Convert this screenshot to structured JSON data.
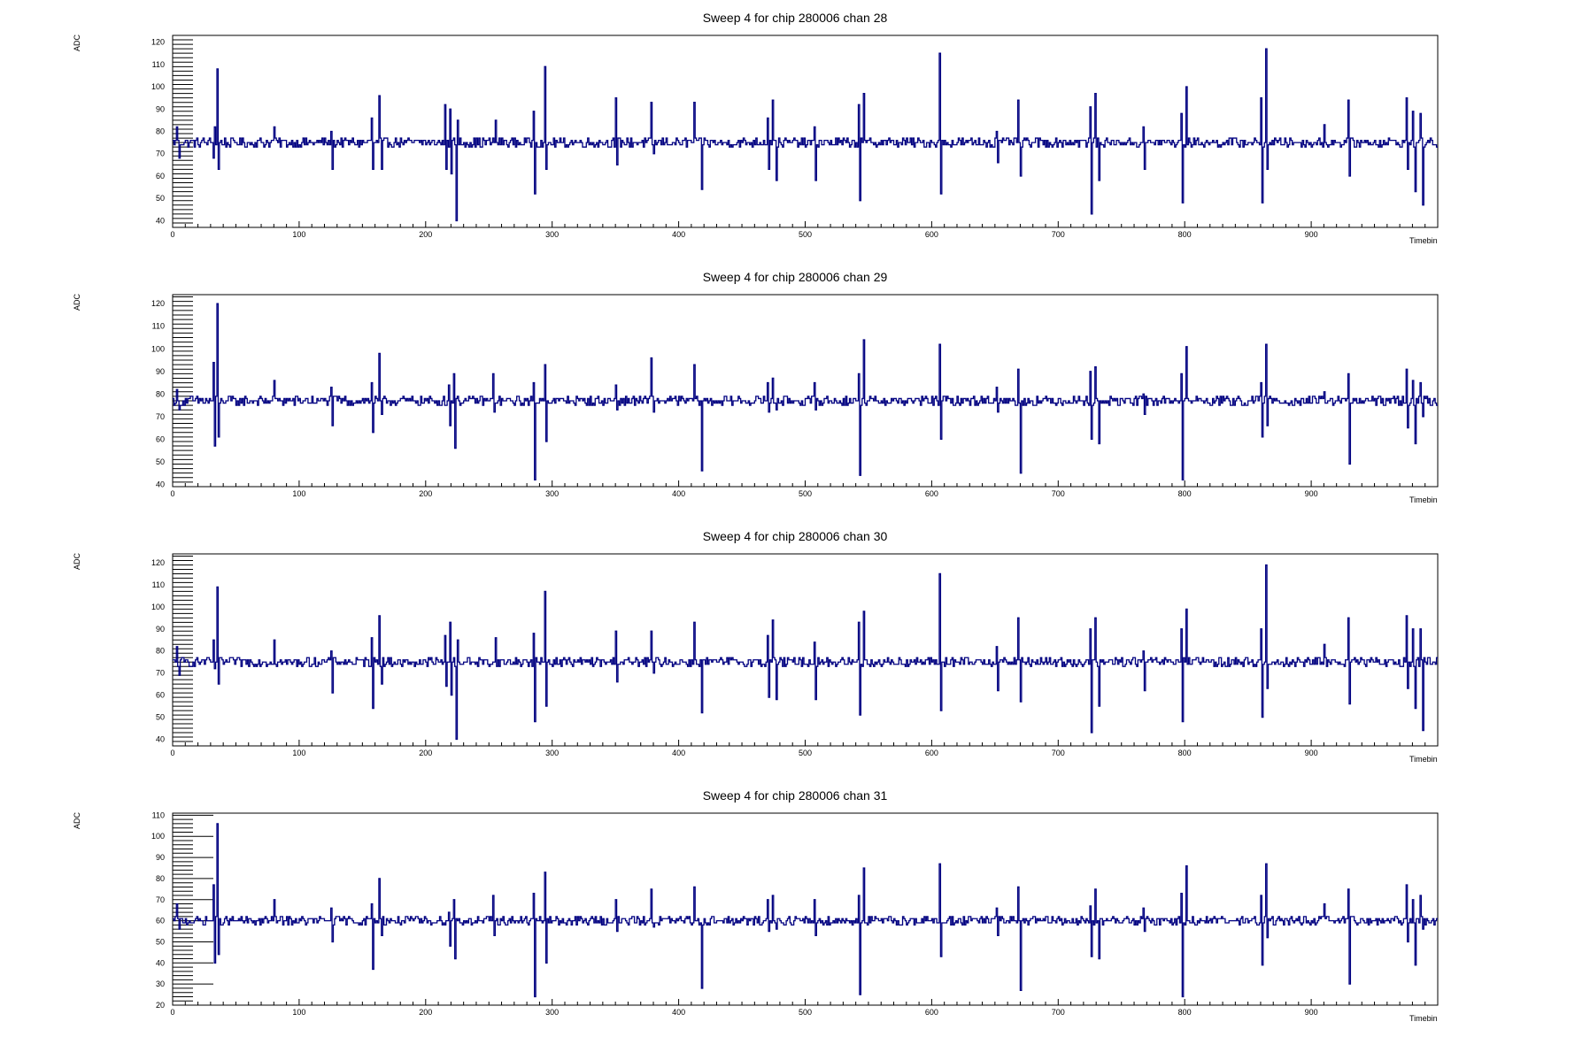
{
  "chart_data": [
    {
      "type": "line",
      "title": "Sweep 4 for chip 280006 chan 28",
      "xlabel": "Timebin",
      "ylabel": "ADC",
      "xlim": [
        0,
        1000
      ],
      "ylim": [
        37,
        123
      ],
      "xticks": [
        0,
        100,
        200,
        300,
        400,
        500,
        600,
        700,
        800,
        900
      ],
      "yticks": [
        40,
        50,
        60,
        70,
        80,
        90,
        100,
        110,
        120
      ],
      "baseline": 75,
      "noise": 2,
      "line_color": "#000080",
      "spikes": [
        [
          3,
          82
        ],
        [
          5,
          68
        ],
        [
          32,
          68
        ],
        [
          33,
          82
        ],
        [
          35,
          108
        ],
        [
          36,
          63
        ],
        [
          80,
          82
        ],
        [
          125,
          80
        ],
        [
          126,
          63
        ],
        [
          157,
          86
        ],
        [
          158,
          63
        ],
        [
          163,
          96
        ],
        [
          165,
          63
        ],
        [
          215,
          92
        ],
        [
          216,
          63
        ],
        [
          219,
          90
        ],
        [
          220,
          61
        ],
        [
          224,
          40
        ],
        [
          225,
          85
        ],
        [
          255,
          85
        ],
        [
          285,
          89
        ],
        [
          286,
          52
        ],
        [
          294,
          109
        ],
        [
          295,
          63
        ],
        [
          350,
          95
        ],
        [
          351,
          65
        ],
        [
          378,
          93
        ],
        [
          380,
          70
        ],
        [
          412,
          93
        ],
        [
          418,
          54
        ],
        [
          470,
          86
        ],
        [
          471,
          63
        ],
        [
          474,
          94
        ],
        [
          477,
          58
        ],
        [
          507,
          82
        ],
        [
          508,
          58
        ],
        [
          542,
          92
        ],
        [
          543,
          49
        ],
        [
          546,
          97
        ],
        [
          606,
          115
        ],
        [
          607,
          52
        ],
        [
          651,
          80
        ],
        [
          652,
          66
        ],
        [
          668,
          94
        ],
        [
          670,
          60
        ],
        [
          725,
          91
        ],
        [
          726,
          43
        ],
        [
          729,
          97
        ],
        [
          732,
          58
        ],
        [
          767,
          82
        ],
        [
          768,
          63
        ],
        [
          797,
          88
        ],
        [
          798,
          48
        ],
        [
          801,
          100
        ],
        [
          860,
          95
        ],
        [
          861,
          48
        ],
        [
          864,
          117
        ],
        [
          865,
          63
        ],
        [
          910,
          83
        ],
        [
          929,
          94
        ],
        [
          930,
          60
        ],
        [
          975,
          95
        ],
        [
          976,
          63
        ],
        [
          980,
          89
        ],
        [
          982,
          53
        ],
        [
          986,
          88
        ],
        [
          988,
          47
        ]
      ]
    },
    {
      "type": "line",
      "title": "Sweep 4 for chip 280006 chan 29",
      "xlabel": "Timebin",
      "ylabel": "ADC",
      "xlim": [
        0,
        1000
      ],
      "ylim": [
        39,
        124
      ],
      "xticks": [
        0,
        100,
        200,
        300,
        400,
        500,
        600,
        700,
        800,
        900
      ],
      "yticks": [
        40,
        50,
        60,
        70,
        80,
        90,
        100,
        110,
        120
      ],
      "baseline": 77,
      "noise": 2,
      "line_color": "#000080",
      "spikes": [
        [
          3,
          82
        ],
        [
          5,
          73
        ],
        [
          32,
          94
        ],
        [
          33,
          57
        ],
        [
          35,
          120
        ],
        [
          36,
          61
        ],
        [
          80,
          86
        ],
        [
          125,
          83
        ],
        [
          126,
          66
        ],
        [
          157,
          85
        ],
        [
          158,
          63
        ],
        [
          163,
          98
        ],
        [
          165,
          71
        ],
        [
          218,
          84
        ],
        [
          219,
          66
        ],
        [
          222,
          89
        ],
        [
          223,
          56
        ],
        [
          253,
          89
        ],
        [
          254,
          72
        ],
        [
          285,
          85
        ],
        [
          286,
          42
        ],
        [
          294,
          93
        ],
        [
          295,
          59
        ],
        [
          350,
          84
        ],
        [
          351,
          73
        ],
        [
          378,
          96
        ],
        [
          380,
          72
        ],
        [
          412,
          93
        ],
        [
          418,
          46
        ],
        [
          470,
          85
        ],
        [
          471,
          72
        ],
        [
          474,
          87
        ],
        [
          477,
          73
        ],
        [
          507,
          85
        ],
        [
          508,
          73
        ],
        [
          542,
          89
        ],
        [
          543,
          44
        ],
        [
          546,
          104
        ],
        [
          606,
          102
        ],
        [
          607,
          60
        ],
        [
          651,
          83
        ],
        [
          652,
          72
        ],
        [
          668,
          91
        ],
        [
          670,
          45
        ],
        [
          725,
          90
        ],
        [
          726,
          60
        ],
        [
          729,
          92
        ],
        [
          732,
          58
        ],
        [
          767,
          80
        ],
        [
          768,
          71
        ],
        [
          797,
          89
        ],
        [
          798,
          42
        ],
        [
          801,
          101
        ],
        [
          860,
          85
        ],
        [
          861,
          61
        ],
        [
          864,
          102
        ],
        [
          865,
          66
        ],
        [
          910,
          81
        ],
        [
          929,
          89
        ],
        [
          930,
          49
        ],
        [
          975,
          91
        ],
        [
          976,
          65
        ],
        [
          980,
          86
        ],
        [
          982,
          58
        ],
        [
          986,
          85
        ],
        [
          988,
          70
        ]
      ]
    },
    {
      "type": "line",
      "title": "Sweep 4 for chip 280006 chan 30",
      "xlabel": "Timebin",
      "ylabel": "ADC",
      "xlim": [
        0,
        1000
      ],
      "ylim": [
        37,
        124
      ],
      "xticks": [
        0,
        100,
        200,
        300,
        400,
        500,
        600,
        700,
        800,
        900
      ],
      "yticks": [
        40,
        50,
        60,
        70,
        80,
        90,
        100,
        110,
        120
      ],
      "baseline": 75,
      "noise": 2,
      "line_color": "#000080",
      "spikes": [
        [
          3,
          82
        ],
        [
          5,
          69
        ],
        [
          32,
          85
        ],
        [
          33,
          72
        ],
        [
          35,
          109
        ],
        [
          36,
          65
        ],
        [
          80,
          85
        ],
        [
          125,
          80
        ],
        [
          126,
          61
        ],
        [
          157,
          86
        ],
        [
          158,
          54
        ],
        [
          163,
          96
        ],
        [
          165,
          65
        ],
        [
          215,
          87
        ],
        [
          216,
          64
        ],
        [
          219,
          93
        ],
        [
          220,
          60
        ],
        [
          224,
          40
        ],
        [
          225,
          85
        ],
        [
          255,
          86
        ],
        [
          285,
          88
        ],
        [
          286,
          48
        ],
        [
          294,
          107
        ],
        [
          295,
          55
        ],
        [
          350,
          89
        ],
        [
          351,
          66
        ],
        [
          378,
          89
        ],
        [
          380,
          70
        ],
        [
          412,
          93
        ],
        [
          418,
          52
        ],
        [
          470,
          87
        ],
        [
          471,
          59
        ],
        [
          474,
          94
        ],
        [
          477,
          58
        ],
        [
          507,
          84
        ],
        [
          508,
          58
        ],
        [
          542,
          93
        ],
        [
          543,
          51
        ],
        [
          546,
          98
        ],
        [
          606,
          115
        ],
        [
          607,
          53
        ],
        [
          651,
          82
        ],
        [
          652,
          62
        ],
        [
          668,
          95
        ],
        [
          670,
          57
        ],
        [
          725,
          90
        ],
        [
          726,
          43
        ],
        [
          729,
          95
        ],
        [
          732,
          55
        ],
        [
          767,
          80
        ],
        [
          768,
          62
        ],
        [
          797,
          90
        ],
        [
          798,
          48
        ],
        [
          801,
          99
        ],
        [
          860,
          90
        ],
        [
          861,
          50
        ],
        [
          864,
          119
        ],
        [
          865,
          63
        ],
        [
          910,
          83
        ],
        [
          929,
          95
        ],
        [
          930,
          56
        ],
        [
          975,
          96
        ],
        [
          976,
          63
        ],
        [
          980,
          90
        ],
        [
          982,
          54
        ],
        [
          986,
          90
        ],
        [
          988,
          44
        ]
      ]
    },
    {
      "type": "line",
      "title": "Sweep 4 for chip 280006 chan 31",
      "xlabel": "Timebin",
      "ylabel": "ADC",
      "xlim": [
        0,
        1000
      ],
      "ylim": [
        20,
        111
      ],
      "xticks": [
        0,
        100,
        200,
        300,
        400,
        500,
        600,
        700,
        800,
        900
      ],
      "yticks": [
        20,
        30,
        40,
        50,
        60,
        70,
        80,
        90,
        100,
        110
      ],
      "baseline": 60,
      "noise": 2,
      "line_color": "#000080",
      "spikes": [
        [
          3,
          68
        ],
        [
          5,
          56
        ],
        [
          32,
          77
        ],
        [
          33,
          40
        ],
        [
          35,
          106
        ],
        [
          36,
          44
        ],
        [
          80,
          70
        ],
        [
          125,
          66
        ],
        [
          126,
          50
        ],
        [
          157,
          68
        ],
        [
          158,
          37
        ],
        [
          163,
          80
        ],
        [
          165,
          53
        ],
        [
          218,
          64
        ],
        [
          219,
          48
        ],
        [
          222,
          70
        ],
        [
          223,
          42
        ],
        [
          253,
          72
        ],
        [
          254,
          53
        ],
        [
          285,
          73
        ],
        [
          286,
          24
        ],
        [
          294,
          83
        ],
        [
          295,
          40
        ],
        [
          350,
          70
        ],
        [
          351,
          55
        ],
        [
          378,
          75
        ],
        [
          380,
          57
        ],
        [
          412,
          76
        ],
        [
          418,
          28
        ],
        [
          470,
          70
        ],
        [
          471,
          55
        ],
        [
          474,
          72
        ],
        [
          477,
          56
        ],
        [
          507,
          70
        ],
        [
          508,
          53
        ],
        [
          542,
          72
        ],
        [
          543,
          25
        ],
        [
          546,
          85
        ],
        [
          606,
          87
        ],
        [
          607,
          43
        ],
        [
          651,
          66
        ],
        [
          652,
          53
        ],
        [
          668,
          76
        ],
        [
          670,
          27
        ],
        [
          725,
          67
        ],
        [
          726,
          43
        ],
        [
          729,
          75
        ],
        [
          732,
          42
        ],
        [
          767,
          66
        ],
        [
          768,
          55
        ],
        [
          797,
          73
        ],
        [
          798,
          24
        ],
        [
          801,
          86
        ],
        [
          860,
          72
        ],
        [
          861,
          39
        ],
        [
          864,
          87
        ],
        [
          865,
          52
        ],
        [
          910,
          68
        ],
        [
          929,
          75
        ],
        [
          930,
          30
        ],
        [
          975,
          77
        ],
        [
          976,
          50
        ],
        [
          980,
          70
        ],
        [
          982,
          39
        ],
        [
          986,
          72
        ],
        [
          988,
          56
        ]
      ]
    }
  ]
}
